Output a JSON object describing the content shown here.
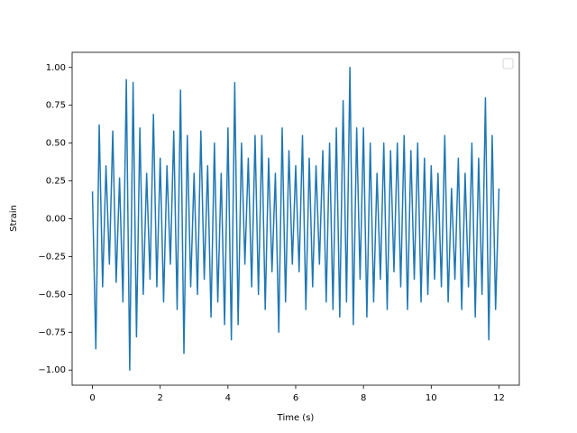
{
  "chart_data": {
    "type": "line",
    "xlabel": "Time (s)",
    "ylabel": "Strain",
    "color": "#1f77b4",
    "x": [
      0.0,
      0.1,
      0.2,
      0.3,
      0.4,
      0.5,
      0.6,
      0.7,
      0.8,
      0.9,
      1.0,
      1.1,
      1.2,
      1.3,
      1.4,
      1.5,
      1.6,
      1.7,
      1.8,
      1.9,
      2.0,
      2.1,
      2.2,
      2.3,
      2.4,
      2.5,
      2.6,
      2.7,
      2.8,
      2.9,
      3.0,
      3.1,
      3.2,
      3.3,
      3.4,
      3.5,
      3.6,
      3.7,
      3.8,
      3.9,
      4.0,
      4.1,
      4.2,
      4.3,
      4.4,
      4.5,
      4.6,
      4.7,
      4.8,
      4.9,
      5.0,
      5.1,
      5.2,
      5.3,
      5.4,
      5.5,
      5.6,
      5.7,
      5.8,
      5.9,
      6.0,
      6.1,
      6.2,
      6.3,
      6.4,
      6.5,
      6.6,
      6.7,
      6.8,
      6.9,
      7.0,
      7.1,
      7.2,
      7.3,
      7.4,
      7.5,
      7.6,
      7.7,
      7.8,
      7.9,
      8.0,
      8.1,
      8.2,
      8.3,
      8.4,
      8.5,
      8.6,
      8.7,
      8.8,
      8.9,
      9.0,
      9.1,
      9.2,
      9.3,
      9.4,
      9.5,
      9.6,
      9.7,
      9.8,
      9.9,
      10.0,
      10.1,
      10.2,
      10.3,
      10.4,
      10.5,
      10.6,
      10.7,
      10.8,
      10.9,
      11.0,
      11.1,
      11.2,
      11.3,
      11.4,
      11.5,
      11.6,
      11.7,
      11.8,
      11.9,
      12.0
    ],
    "values": [
      0.18,
      -0.86,
      0.62,
      -0.45,
      0.35,
      -0.3,
      0.58,
      -0.42,
      0.27,
      -0.55,
      0.92,
      -1.0,
      0.9,
      -0.78,
      0.6,
      -0.5,
      0.3,
      -0.4,
      0.69,
      -0.45,
      0.4,
      -0.55,
      0.35,
      -0.3,
      0.58,
      -0.6,
      0.85,
      -0.89,
      0.55,
      -0.45,
      0.3,
      -0.5,
      0.58,
      -0.4,
      0.35,
      -0.65,
      0.5,
      -0.55,
      0.3,
      -0.7,
      0.6,
      -0.8,
      0.9,
      -0.7,
      0.5,
      -0.3,
      0.4,
      -0.45,
      0.55,
      -0.5,
      0.55,
      -0.6,
      0.4,
      -0.35,
      0.3,
      -0.75,
      0.6,
      -0.55,
      0.45,
      -0.3,
      0.35,
      -0.35,
      0.55,
      -0.6,
      0.4,
      -0.45,
      0.35,
      -0.3,
      0.45,
      -0.55,
      0.5,
      -0.6,
      0.6,
      -0.65,
      0.78,
      -0.55,
      1.0,
      -0.7,
      0.6,
      -0.4,
      0.6,
      -0.65,
      0.5,
      -0.55,
      0.3,
      -0.4,
      0.5,
      -0.6,
      0.45,
      -0.35,
      0.5,
      -0.45,
      0.55,
      -0.6,
      0.45,
      -0.4,
      0.5,
      -0.55,
      0.4,
      -0.5,
      0.35,
      -0.4,
      0.3,
      -0.45,
      0.55,
      -0.55,
      0.2,
      -0.4,
      0.4,
      -0.6,
      0.3,
      -0.45,
      0.5,
      -0.65,
      0.4,
      -0.5,
      0.8,
      -0.8,
      0.55,
      -0.6,
      0.2
    ],
    "xlim": [
      -0.6,
      12.6
    ],
    "xticks": [
      0,
      2,
      4,
      6,
      8,
      10,
      12
    ],
    "ylim": [
      -1.1,
      1.1
    ],
    "yticks": [
      {
        "value": -1.0,
        "label": "−1.00"
      },
      {
        "value": -0.75,
        "label": "−0.75"
      },
      {
        "value": -0.5,
        "label": "−0.50"
      },
      {
        "value": -0.25,
        "label": "−0.25"
      },
      {
        "value": 0.0,
        "label": "0.00"
      },
      {
        "value": 0.25,
        "label": "0.25"
      },
      {
        "value": 0.5,
        "label": "0.50"
      },
      {
        "value": 0.75,
        "label": "0.75"
      },
      {
        "value": 1.0,
        "label": "1.00"
      }
    ],
    "grid": false
  }
}
